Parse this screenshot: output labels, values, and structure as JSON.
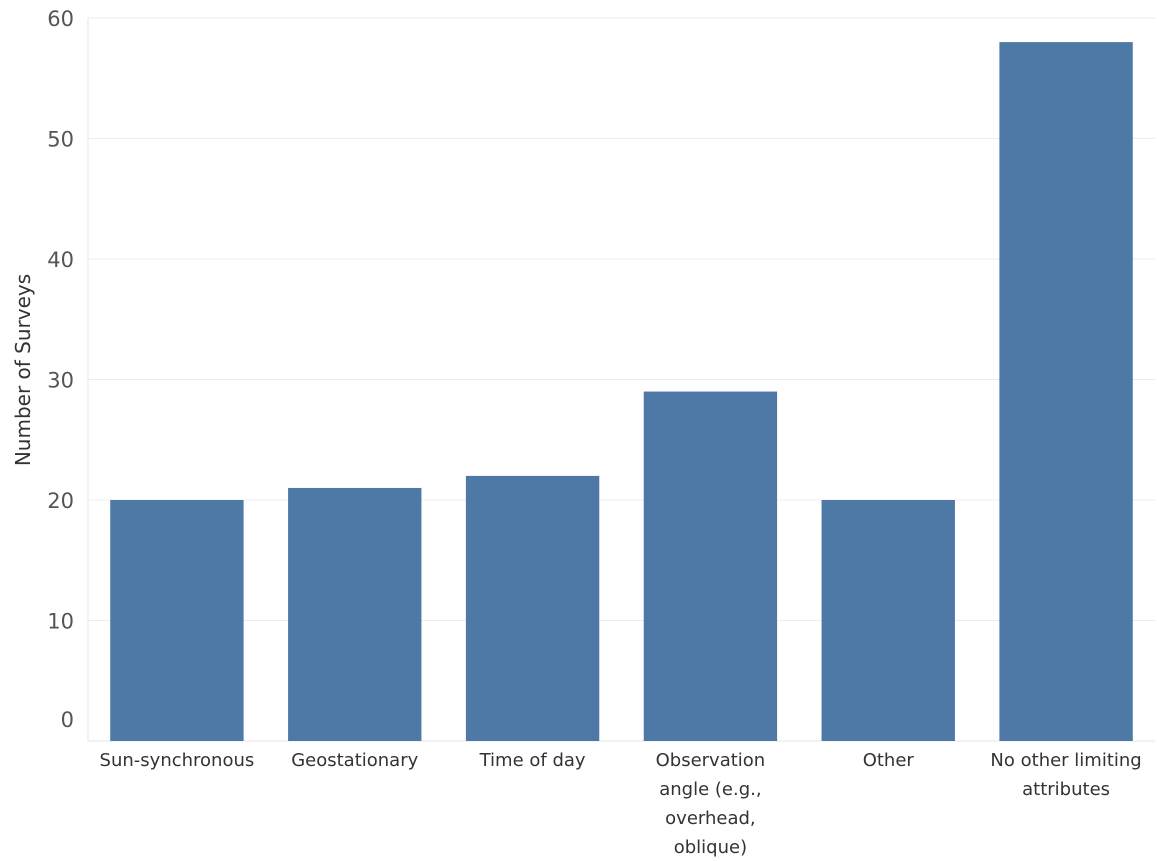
{
  "chart_data": {
    "type": "bar",
    "title": "",
    "xlabel": "",
    "ylabel": "Number of Surveys",
    "ylim": [
      0,
      60
    ],
    "yticks": [
      0,
      10,
      20,
      30,
      40,
      50,
      60
    ],
    "grid": true,
    "bar_color": "#4e79a7",
    "categories": [
      [
        "Sun-synchronous"
      ],
      [
        "Geostationary"
      ],
      [
        "Time of day"
      ],
      [
        "Observation",
        "angle (e.g.,",
        "overhead,",
        "oblique)"
      ],
      [
        "Other"
      ],
      [
        "No other limiting",
        "attributes"
      ]
    ],
    "values": [
      20,
      21,
      22,
      29,
      20,
      58
    ]
  }
}
